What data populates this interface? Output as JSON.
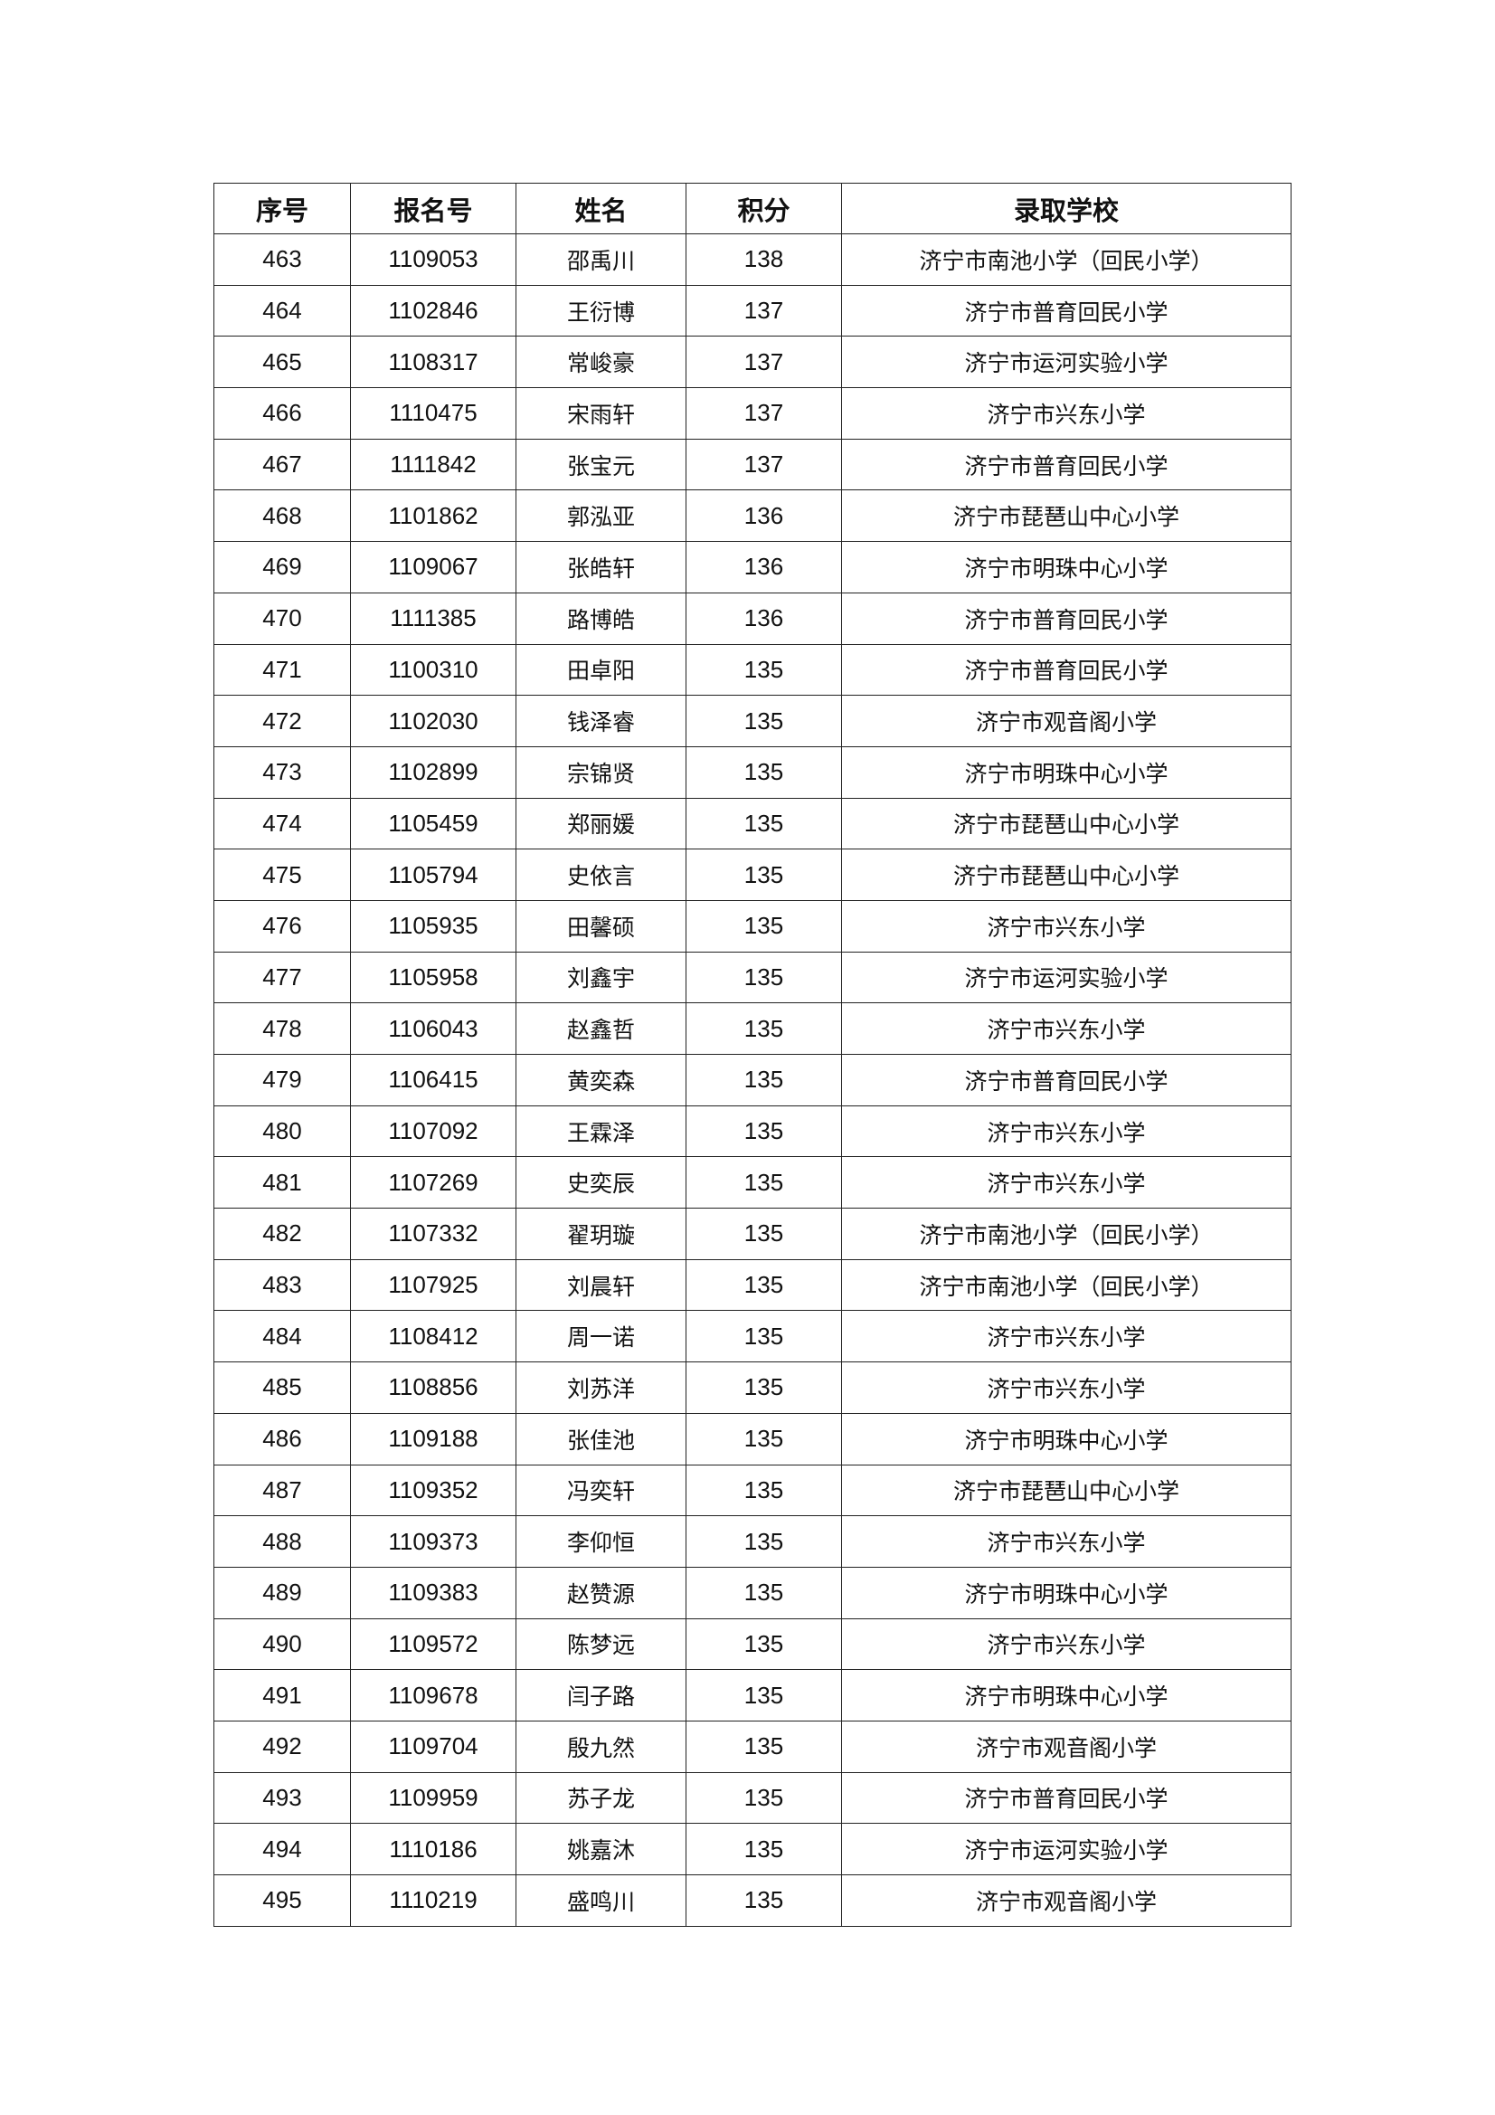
{
  "table": {
    "headers": [
      "序号",
      "报名号",
      "姓名",
      "积分",
      "录取学校"
    ],
    "rows": [
      [
        "463",
        "1109053",
        "邵禹川",
        "138",
        "济宁市南池小学（回民小学）"
      ],
      [
        "464",
        "1102846",
        "王衍博",
        "137",
        "济宁市普育回民小学"
      ],
      [
        "465",
        "1108317",
        "常峻豪",
        "137",
        "济宁市运河实验小学"
      ],
      [
        "466",
        "1110475",
        "宋雨轩",
        "137",
        "济宁市兴东小学"
      ],
      [
        "467",
        "1111842",
        "张宝元",
        "137",
        "济宁市普育回民小学"
      ],
      [
        "468",
        "1101862",
        "郭泓亚",
        "136",
        "济宁市琵琶山中心小学"
      ],
      [
        "469",
        "1109067",
        "张皓轩",
        "136",
        "济宁市明珠中心小学"
      ],
      [
        "470",
        "1111385",
        "路博皓",
        "136",
        "济宁市普育回民小学"
      ],
      [
        "471",
        "1100310",
        "田卓阳",
        "135",
        "济宁市普育回民小学"
      ],
      [
        "472",
        "1102030",
        "钱泽睿",
        "135",
        "济宁市观音阁小学"
      ],
      [
        "473",
        "1102899",
        "宗锦贤",
        "135",
        "济宁市明珠中心小学"
      ],
      [
        "474",
        "1105459",
        "郑丽媛",
        "135",
        "济宁市琵琶山中心小学"
      ],
      [
        "475",
        "1105794",
        "史依言",
        "135",
        "济宁市琵琶山中心小学"
      ],
      [
        "476",
        "1105935",
        "田馨硕",
        "135",
        "济宁市兴东小学"
      ],
      [
        "477",
        "1105958",
        "刘鑫宇",
        "135",
        "济宁市运河实验小学"
      ],
      [
        "478",
        "1106043",
        "赵鑫哲",
        "135",
        "济宁市兴东小学"
      ],
      [
        "479",
        "1106415",
        "黄奕森",
        "135",
        "济宁市普育回民小学"
      ],
      [
        "480",
        "1107092",
        "王霖泽",
        "135",
        "济宁市兴东小学"
      ],
      [
        "481",
        "1107269",
        "史奕辰",
        "135",
        "济宁市兴东小学"
      ],
      [
        "482",
        "1107332",
        "翟玥璇",
        "135",
        "济宁市南池小学（回民小学）"
      ],
      [
        "483",
        "1107925",
        "刘晨轩",
        "135",
        "济宁市南池小学（回民小学）"
      ],
      [
        "484",
        "1108412",
        "周一诺",
        "135",
        "济宁市兴东小学"
      ],
      [
        "485",
        "1108856",
        "刘苏洋",
        "135",
        "济宁市兴东小学"
      ],
      [
        "486",
        "1109188",
        "张佳池",
        "135",
        "济宁市明珠中心小学"
      ],
      [
        "487",
        "1109352",
        "冯奕轩",
        "135",
        "济宁市琵琶山中心小学"
      ],
      [
        "488",
        "1109373",
        "李仰恒",
        "135",
        "济宁市兴东小学"
      ],
      [
        "489",
        "1109383",
        "赵赞源",
        "135",
        "济宁市明珠中心小学"
      ],
      [
        "490",
        "1109572",
        "陈梦远",
        "135",
        "济宁市兴东小学"
      ],
      [
        "491",
        "1109678",
        "闫子路",
        "135",
        "济宁市明珠中心小学"
      ],
      [
        "492",
        "1109704",
        "殷九然",
        "135",
        "济宁市观音阁小学"
      ],
      [
        "493",
        "1109959",
        "苏子龙",
        "135",
        "济宁市普育回民小学"
      ],
      [
        "494",
        "1110186",
        "姚嘉沐",
        "135",
        "济宁市运河实验小学"
      ],
      [
        "495",
        "1110219",
        "盛鸣川",
        "135",
        "济宁市观音阁小学"
      ]
    ]
  }
}
